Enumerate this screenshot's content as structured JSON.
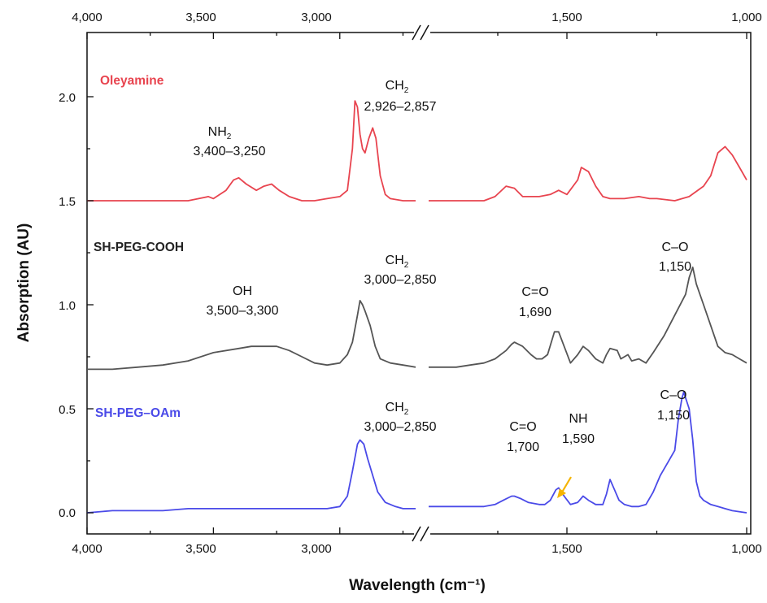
{
  "chart_data": {
    "type": "line",
    "xlabel": "Wavelength (cm⁻¹)",
    "ylabel": "Absorption (AU)",
    "x_ticks": [
      "4,000",
      "3,500",
      "3,000",
      "1,500",
      "1,000"
    ],
    "y_ticks": [
      "0.0",
      "0.5",
      "1.0",
      "1.5",
      "2.0"
    ],
    "ylim": [
      -0.06,
      2.3
    ],
    "x_axis_break": [
      2700,
      2000
    ],
    "x_segments": [
      [
        4000,
        2700
      ],
      [
        2000,
        1000
      ]
    ],
    "series": [
      {
        "name": "Oleyamine",
        "color": "#e8444f",
        "points": [
          [
            4000,
            1.5
          ],
          [
            3900,
            1.5
          ],
          [
            3800,
            1.5
          ],
          [
            3700,
            1.5
          ],
          [
            3600,
            1.5
          ],
          [
            3520,
            1.52
          ],
          [
            3500,
            1.51
          ],
          [
            3450,
            1.55
          ],
          [
            3420,
            1.6
          ],
          [
            3400,
            1.61
          ],
          [
            3370,
            1.58
          ],
          [
            3330,
            1.55
          ],
          [
            3300,
            1.57
          ],
          [
            3270,
            1.58
          ],
          [
            3240,
            1.55
          ],
          [
            3200,
            1.52
          ],
          [
            3150,
            1.5
          ],
          [
            3100,
            1.5
          ],
          [
            3050,
            1.51
          ],
          [
            3000,
            1.52
          ],
          [
            2970,
            1.55
          ],
          [
            2950,
            1.75
          ],
          [
            2940,
            1.98
          ],
          [
            2930,
            1.95
          ],
          [
            2920,
            1.82
          ],
          [
            2910,
            1.75
          ],
          [
            2900,
            1.73
          ],
          [
            2885,
            1.8
          ],
          [
            2870,
            1.85
          ],
          [
            2857,
            1.8
          ],
          [
            2840,
            1.62
          ],
          [
            2820,
            1.53
          ],
          [
            2800,
            1.51
          ],
          [
            2750,
            1.5
          ],
          [
            2700,
            1.5
          ],
          [
            2000,
            1.5
          ],
          [
            1900,
            1.5
          ],
          [
            1800,
            1.5
          ],
          [
            1760,
            1.52
          ],
          [
            1720,
            1.57
          ],
          [
            1690,
            1.56
          ],
          [
            1660,
            1.52
          ],
          [
            1600,
            1.52
          ],
          [
            1560,
            1.53
          ],
          [
            1530,
            1.55
          ],
          [
            1500,
            1.53
          ],
          [
            1470,
            1.6
          ],
          [
            1460,
            1.66
          ],
          [
            1440,
            1.64
          ],
          [
            1420,
            1.57
          ],
          [
            1400,
            1.52
          ],
          [
            1380,
            1.51
          ],
          [
            1340,
            1.51
          ],
          [
            1300,
            1.52
          ],
          [
            1270,
            1.51
          ],
          [
            1250,
            1.51
          ],
          [
            1200,
            1.5
          ],
          [
            1160,
            1.52
          ],
          [
            1120,
            1.57
          ],
          [
            1100,
            1.62
          ],
          [
            1080,
            1.73
          ],
          [
            1060,
            1.76
          ],
          [
            1040,
            1.72
          ],
          [
            1020,
            1.66
          ],
          [
            1000,
            1.6
          ]
        ]
      },
      {
        "name": "SH-PEG-COOH",
        "color": "#555555",
        "points": [
          [
            4000,
            0.69
          ],
          [
            3900,
            0.69
          ],
          [
            3800,
            0.7
          ],
          [
            3700,
            0.71
          ],
          [
            3600,
            0.73
          ],
          [
            3500,
            0.77
          ],
          [
            3400,
            0.79
          ],
          [
            3350,
            0.8
          ],
          [
            3300,
            0.8
          ],
          [
            3250,
            0.8
          ],
          [
            3200,
            0.78
          ],
          [
            3150,
            0.75
          ],
          [
            3100,
            0.72
          ],
          [
            3050,
            0.71
          ],
          [
            3000,
            0.72
          ],
          [
            2970,
            0.76
          ],
          [
            2950,
            0.82
          ],
          [
            2930,
            0.95
          ],
          [
            2920,
            1.02
          ],
          [
            2910,
            1.0
          ],
          [
            2900,
            0.97
          ],
          [
            2880,
            0.9
          ],
          [
            2860,
            0.8
          ],
          [
            2840,
            0.74
          ],
          [
            2800,
            0.72
          ],
          [
            2750,
            0.71
          ],
          [
            2700,
            0.7
          ],
          [
            2000,
            0.7
          ],
          [
            1900,
            0.7
          ],
          [
            1850,
            0.71
          ],
          [
            1800,
            0.72
          ],
          [
            1760,
            0.74
          ],
          [
            1720,
            0.78
          ],
          [
            1700,
            0.81
          ],
          [
            1690,
            0.82
          ],
          [
            1660,
            0.8
          ],
          [
            1630,
            0.76
          ],
          [
            1610,
            0.74
          ],
          [
            1590,
            0.74
          ],
          [
            1570,
            0.76
          ],
          [
            1545,
            0.87
          ],
          [
            1530,
            0.87
          ],
          [
            1510,
            0.8
          ],
          [
            1490,
            0.72
          ],
          [
            1470,
            0.76
          ],
          [
            1455,
            0.8
          ],
          [
            1440,
            0.78
          ],
          [
            1420,
            0.74
          ],
          [
            1400,
            0.72
          ],
          [
            1390,
            0.76
          ],
          [
            1380,
            0.79
          ],
          [
            1360,
            0.78
          ],
          [
            1350,
            0.74
          ],
          [
            1330,
            0.76
          ],
          [
            1320,
            0.73
          ],
          [
            1300,
            0.74
          ],
          [
            1280,
            0.72
          ],
          [
            1260,
            0.77
          ],
          [
            1230,
            0.85
          ],
          [
            1200,
            0.95
          ],
          [
            1170,
            1.05
          ],
          [
            1160,
            1.13
          ],
          [
            1150,
            1.18
          ],
          [
            1140,
            1.1
          ],
          [
            1120,
            1.0
          ],
          [
            1100,
            0.9
          ],
          [
            1080,
            0.8
          ],
          [
            1060,
            0.77
          ],
          [
            1040,
            0.76
          ],
          [
            1020,
            0.74
          ],
          [
            1000,
            0.72
          ]
        ]
      },
      {
        "name": "SH-PEG–OAm",
        "color": "#4a4ae8",
        "points": [
          [
            4000,
            0.0
          ],
          [
            3900,
            0.01
          ],
          [
            3800,
            0.01
          ],
          [
            3700,
            0.01
          ],
          [
            3600,
            0.02
          ],
          [
            3500,
            0.02
          ],
          [
            3400,
            0.02
          ],
          [
            3300,
            0.02
          ],
          [
            3200,
            0.02
          ],
          [
            3100,
            0.02
          ],
          [
            3050,
            0.02
          ],
          [
            3000,
            0.03
          ],
          [
            2970,
            0.08
          ],
          [
            2950,
            0.2
          ],
          [
            2930,
            0.33
          ],
          [
            2920,
            0.35
          ],
          [
            2905,
            0.33
          ],
          [
            2890,
            0.26
          ],
          [
            2870,
            0.18
          ],
          [
            2850,
            0.1
          ],
          [
            2820,
            0.05
          ],
          [
            2780,
            0.03
          ],
          [
            2750,
            0.02
          ],
          [
            2700,
            0.02
          ],
          [
            2000,
            0.03
          ],
          [
            1900,
            0.03
          ],
          [
            1850,
            0.03
          ],
          [
            1800,
            0.03
          ],
          [
            1760,
            0.04
          ],
          [
            1730,
            0.06
          ],
          [
            1700,
            0.08
          ],
          [
            1690,
            0.08
          ],
          [
            1670,
            0.07
          ],
          [
            1640,
            0.05
          ],
          [
            1600,
            0.04
          ],
          [
            1580,
            0.04
          ],
          [
            1560,
            0.06
          ],
          [
            1540,
            0.11
          ],
          [
            1530,
            0.12
          ],
          [
            1510,
            0.08
          ],
          [
            1490,
            0.04
          ],
          [
            1470,
            0.05
          ],
          [
            1455,
            0.08
          ],
          [
            1440,
            0.06
          ],
          [
            1420,
            0.04
          ],
          [
            1400,
            0.04
          ],
          [
            1390,
            0.09
          ],
          [
            1380,
            0.16
          ],
          [
            1370,
            0.12
          ],
          [
            1355,
            0.06
          ],
          [
            1340,
            0.04
          ],
          [
            1320,
            0.03
          ],
          [
            1300,
            0.03
          ],
          [
            1280,
            0.04
          ],
          [
            1260,
            0.1
          ],
          [
            1240,
            0.18
          ],
          [
            1220,
            0.24
          ],
          [
            1200,
            0.3
          ],
          [
            1190,
            0.45
          ],
          [
            1180,
            0.55
          ],
          [
            1175,
            0.58
          ],
          [
            1160,
            0.5
          ],
          [
            1150,
            0.35
          ],
          [
            1140,
            0.15
          ],
          [
            1130,
            0.08
          ],
          [
            1120,
            0.06
          ],
          [
            1100,
            0.04
          ],
          [
            1080,
            0.03
          ],
          [
            1060,
            0.02
          ],
          [
            1040,
            0.01
          ],
          [
            1000,
            0.0
          ]
        ]
      }
    ],
    "annotations": [
      {
        "main": "NH",
        "sub": "2",
        "range": "3,400–3,250"
      },
      {
        "main": "CH",
        "sub": "2",
        "range": "2,926–2,857"
      },
      {
        "main": "OH",
        "sub": "",
        "range": "3,500–3,300"
      },
      {
        "main": "CH",
        "sub": "2",
        "range": "3,000–2,850"
      },
      {
        "main": "C=O",
        "sub": "",
        "range": "1,690"
      },
      {
        "main": "C–O",
        "sub": "",
        "range": "1,150"
      },
      {
        "main": "CH",
        "sub": "2",
        "range": "3,000–2,850"
      },
      {
        "main": "C=O",
        "sub": "",
        "range": "1,700"
      },
      {
        "main": "NH",
        "sub": "",
        "range": "1,590"
      },
      {
        "main": "C–O",
        "sub": "",
        "range": "1,150"
      }
    ],
    "arrow_color": "#f5b400"
  }
}
